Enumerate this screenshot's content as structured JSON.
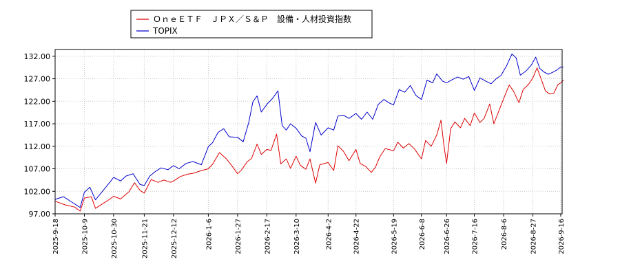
{
  "chart_data": {
    "type": "line",
    "legend": {
      "placement": "top-center-left",
      "entries": [
        "ＯｎｅＥＴＦ　ＪＰＸ／Ｓ＆Ｐ　設備・人材投資指数",
        "TOPIX"
      ]
    },
    "grid": true,
    "ylim": [
      97.0,
      133.5
    ],
    "y_ticks": [
      "97.00",
      "102.00",
      "107.00",
      "112.00",
      "117.00",
      "122.00",
      "127.00",
      "132.00"
    ],
    "x_ticks": [
      "2025-9-18",
      "2025-10-9",
      "2025-10-30",
      "2025-11-21",
      "2025-12-12",
      "2026-1-6",
      "2026-1-27",
      "2026-2-17",
      "2026-3-10",
      "2026-4-2",
      "2026-4-22",
      "2026-5-19",
      "2026-6-8",
      "2026-6-26",
      "2026-7-16",
      "2026-8-6",
      "2026-8-27",
      "2026-9-16"
    ],
    "series": [
      {
        "name": "ＯｎｅＥＴＦ　ＪＰＸ／Ｓ＆Ｐ　設備・人材投資指数",
        "color": "#dd0000",
        "points": [
          [
            "2025-9-18",
            99.8
          ],
          [
            "2025-9-25",
            99.0
          ],
          [
            "2025-10-2",
            98.5
          ],
          [
            "2025-10-6",
            97.6
          ],
          [
            "2025-10-9",
            100.5
          ],
          [
            "2025-10-14",
            100.8
          ],
          [
            "2025-10-17",
            98.2
          ],
          [
            "2025-10-22",
            99.2
          ],
          [
            "2025-10-27",
            100.2
          ],
          [
            "2025-10-30",
            100.9
          ],
          [
            "2025-11-4",
            100.3
          ],
          [
            "2025-11-10",
            101.9
          ],
          [
            "2025-11-14",
            103.9
          ],
          [
            "2025-11-18",
            102.2
          ],
          [
            "2025-11-21",
            101.6
          ],
          [
            "2025-11-26",
            104.6
          ],
          [
            "2025-12-1",
            104.0
          ],
          [
            "2025-12-5",
            104.5
          ],
          [
            "2025-12-10",
            104.0
          ],
          [
            "2025-12-12",
            104.3
          ],
          [
            "2025-12-17",
            105.3
          ],
          [
            "2025-12-22",
            105.8
          ],
          [
            "2025-12-26",
            106.0
          ],
          [
            "2026-1-1",
            106.6
          ],
          [
            "2026-1-6",
            107.0
          ],
          [
            "2026-1-9",
            108.0
          ],
          [
            "2026-1-14",
            110.6
          ],
          [
            "2026-1-19",
            109.2
          ],
          [
            "2026-1-23",
            107.6
          ],
          [
            "2026-1-27",
            105.9
          ],
          [
            "2026-1-30",
            106.8
          ],
          [
            "2026-2-3",
            108.6
          ],
          [
            "2026-2-6",
            109.3
          ],
          [
            "2026-2-10",
            112.5
          ],
          [
            "2026-2-13",
            110.2
          ],
          [
            "2026-2-17",
            111.3
          ],
          [
            "2026-2-20",
            111.1
          ],
          [
            "2026-2-24",
            114.7
          ],
          [
            "2026-2-27",
            108.1
          ],
          [
            "2026-3-3",
            109.2
          ],
          [
            "2026-3-6",
            107.1
          ],
          [
            "2026-3-10",
            109.8
          ],
          [
            "2026-3-13",
            107.8
          ],
          [
            "2026-3-17",
            106.9
          ],
          [
            "2026-3-20",
            109.2
          ],
          [
            "2026-3-24",
            103.8
          ],
          [
            "2026-3-27",
            107.9
          ],
          [
            "2026-4-2",
            108.4
          ],
          [
            "2026-4-6",
            106.6
          ],
          [
            "2026-4-9",
            112.1
          ],
          [
            "2026-4-13",
            110.9
          ],
          [
            "2026-4-17",
            108.8
          ],
          [
            "2026-4-22",
            111.3
          ],
          [
            "2026-4-25",
            108.2
          ],
          [
            "2026-4-29",
            107.5
          ],
          [
            "2026-5-3",
            106.2
          ],
          [
            "2026-5-6",
            107.4
          ],
          [
            "2026-5-9",
            109.6
          ],
          [
            "2026-5-13",
            111.5
          ],
          [
            "2026-5-19",
            111.0
          ],
          [
            "2026-5-22",
            112.9
          ],
          [
            "2026-5-26",
            111.6
          ],
          [
            "2026-5-30",
            112.6
          ],
          [
            "2026-6-3",
            111.4
          ],
          [
            "2026-6-8",
            109.2
          ],
          [
            "2026-6-11",
            113.3
          ],
          [
            "2026-6-15",
            112.0
          ],
          [
            "2026-6-19",
            114.5
          ],
          [
            "2026-6-22",
            117.8
          ],
          [
            "2026-6-24",
            112.6
          ],
          [
            "2026-6-26",
            108.2
          ],
          [
            "2026-6-29",
            115.9
          ],
          [
            "2026-7-2",
            117.4
          ],
          [
            "2026-7-6",
            116.1
          ],
          [
            "2026-7-9",
            118.2
          ],
          [
            "2026-7-13",
            116.6
          ],
          [
            "2026-7-16",
            119.4
          ],
          [
            "2026-7-20",
            117.3
          ],
          [
            "2026-7-23",
            118.2
          ],
          [
            "2026-7-27",
            121.4
          ],
          [
            "2026-7-30",
            117.0
          ],
          [
            "2026-8-3",
            120.2
          ],
          [
            "2026-8-6",
            122.6
          ],
          [
            "2026-8-10",
            125.6
          ],
          [
            "2026-8-13",
            124.3
          ],
          [
            "2026-8-17",
            121.7
          ],
          [
            "2026-8-20",
            124.6
          ],
          [
            "2026-8-24",
            125.8
          ],
          [
            "2026-8-27",
            127.2
          ],
          [
            "2026-8-30",
            129.4
          ],
          [
            "2026-9-2",
            126.9
          ],
          [
            "2026-9-5",
            124.3
          ],
          [
            "2026-9-8",
            123.6
          ],
          [
            "2026-9-11",
            123.8
          ],
          [
            "2026-9-14",
            125.7
          ],
          [
            "2026-9-16",
            126.1
          ],
          [
            "2026-9-18",
            126.7
          ]
        ]
      },
      {
        "name": "TOPIX",
        "color": "#0000cc",
        "points": [
          [
            "2025-9-18",
            100.2
          ],
          [
            "2025-9-24",
            100.8
          ],
          [
            "2025-9-30",
            99.6
          ],
          [
            "2025-10-6",
            98.4
          ],
          [
            "2025-10-9",
            101.8
          ],
          [
            "2025-10-13",
            102.9
          ],
          [
            "2025-10-17",
            100.1
          ],
          [
            "2025-10-22",
            102.0
          ],
          [
            "2025-10-27",
            103.9
          ],
          [
            "2025-10-30",
            105.1
          ],
          [
            "2025-11-4",
            104.3
          ],
          [
            "2025-11-8",
            105.4
          ],
          [
            "2025-11-13",
            105.9
          ],
          [
            "2025-11-18",
            103.5
          ],
          [
            "2025-11-21",
            103.3
          ],
          [
            "2025-11-25",
            105.4
          ],
          [
            "2025-11-29",
            106.4
          ],
          [
            "2025-12-3",
            107.2
          ],
          [
            "2025-12-8",
            106.8
          ],
          [
            "2025-12-12",
            107.7
          ],
          [
            "2025-12-16",
            107.0
          ],
          [
            "2025-12-21",
            108.2
          ],
          [
            "2025-12-26",
            108.6
          ],
          [
            "2026-1-1",
            107.9
          ],
          [
            "2026-1-6",
            111.9
          ],
          [
            "2026-1-9",
            112.8
          ],
          [
            "2026-1-13",
            115.1
          ],
          [
            "2026-1-17",
            115.9
          ],
          [
            "2026-1-21",
            114.1
          ],
          [
            "2026-1-27",
            114.0
          ],
          [
            "2026-1-31",
            113.0
          ],
          [
            "2026-2-4",
            117.3
          ],
          [
            "2026-2-7",
            121.9
          ],
          [
            "2026-2-10",
            123.2
          ],
          [
            "2026-2-13",
            119.6
          ],
          [
            "2026-2-17",
            121.3
          ],
          [
            "2026-2-21",
            122.6
          ],
          [
            "2026-2-25",
            124.3
          ],
          [
            "2026-2-28",
            116.6
          ],
          [
            "2026-3-3",
            115.6
          ],
          [
            "2026-3-6",
            117.0
          ],
          [
            "2026-3-10",
            116.0
          ],
          [
            "2026-3-14",
            114.3
          ],
          [
            "2026-3-17",
            113.8
          ],
          [
            "2026-3-20",
            110.8
          ],
          [
            "2026-3-24",
            117.3
          ],
          [
            "2026-3-28",
            114.5
          ],
          [
            "2026-4-2",
            116.1
          ],
          [
            "2026-4-6",
            115.6
          ],
          [
            "2026-4-9",
            118.7
          ],
          [
            "2026-4-13",
            118.9
          ],
          [
            "2026-4-17",
            118.2
          ],
          [
            "2026-4-22",
            119.3
          ],
          [
            "2026-4-26",
            118.0
          ],
          [
            "2026-4-30",
            119.6
          ],
          [
            "2026-5-4",
            118.0
          ],
          [
            "2026-5-8",
            121.3
          ],
          [
            "2026-5-12",
            122.4
          ],
          [
            "2026-5-16",
            121.6
          ],
          [
            "2026-5-19",
            121.2
          ],
          [
            "2026-5-23",
            124.6
          ],
          [
            "2026-5-27",
            124.0
          ],
          [
            "2026-5-31",
            125.5
          ],
          [
            "2026-6-4",
            123.3
          ],
          [
            "2026-6-8",
            122.4
          ],
          [
            "2026-6-12",
            126.7
          ],
          [
            "2026-6-16",
            126.1
          ],
          [
            "2026-6-19",
            128.1
          ],
          [
            "2026-6-23",
            126.5
          ],
          [
            "2026-6-26",
            126.1
          ],
          [
            "2026-6-30",
            126.8
          ],
          [
            "2026-7-4",
            127.4
          ],
          [
            "2026-7-8",
            126.9
          ],
          [
            "2026-7-12",
            127.5
          ],
          [
            "2026-7-16",
            124.4
          ],
          [
            "2026-7-20",
            127.2
          ],
          [
            "2026-7-24",
            126.5
          ],
          [
            "2026-7-28",
            125.9
          ],
          [
            "2026-8-1",
            127.1
          ],
          [
            "2026-8-4",
            127.7
          ],
          [
            "2026-8-8",
            129.8
          ],
          [
            "2026-8-12",
            132.5
          ],
          [
            "2026-8-15",
            131.6
          ],
          [
            "2026-8-18",
            127.8
          ],
          [
            "2026-8-22",
            128.7
          ],
          [
            "2026-8-26",
            130.1
          ],
          [
            "2026-8-29",
            131.8
          ],
          [
            "2026-9-1",
            129.3
          ],
          [
            "2026-9-4",
            128.5
          ],
          [
            "2026-9-7",
            128.0
          ],
          [
            "2026-9-10",
            128.4
          ],
          [
            "2026-9-13",
            128.9
          ],
          [
            "2026-9-16",
            129.6
          ],
          [
            "2026-9-18",
            129.6
          ]
        ]
      }
    ]
  }
}
